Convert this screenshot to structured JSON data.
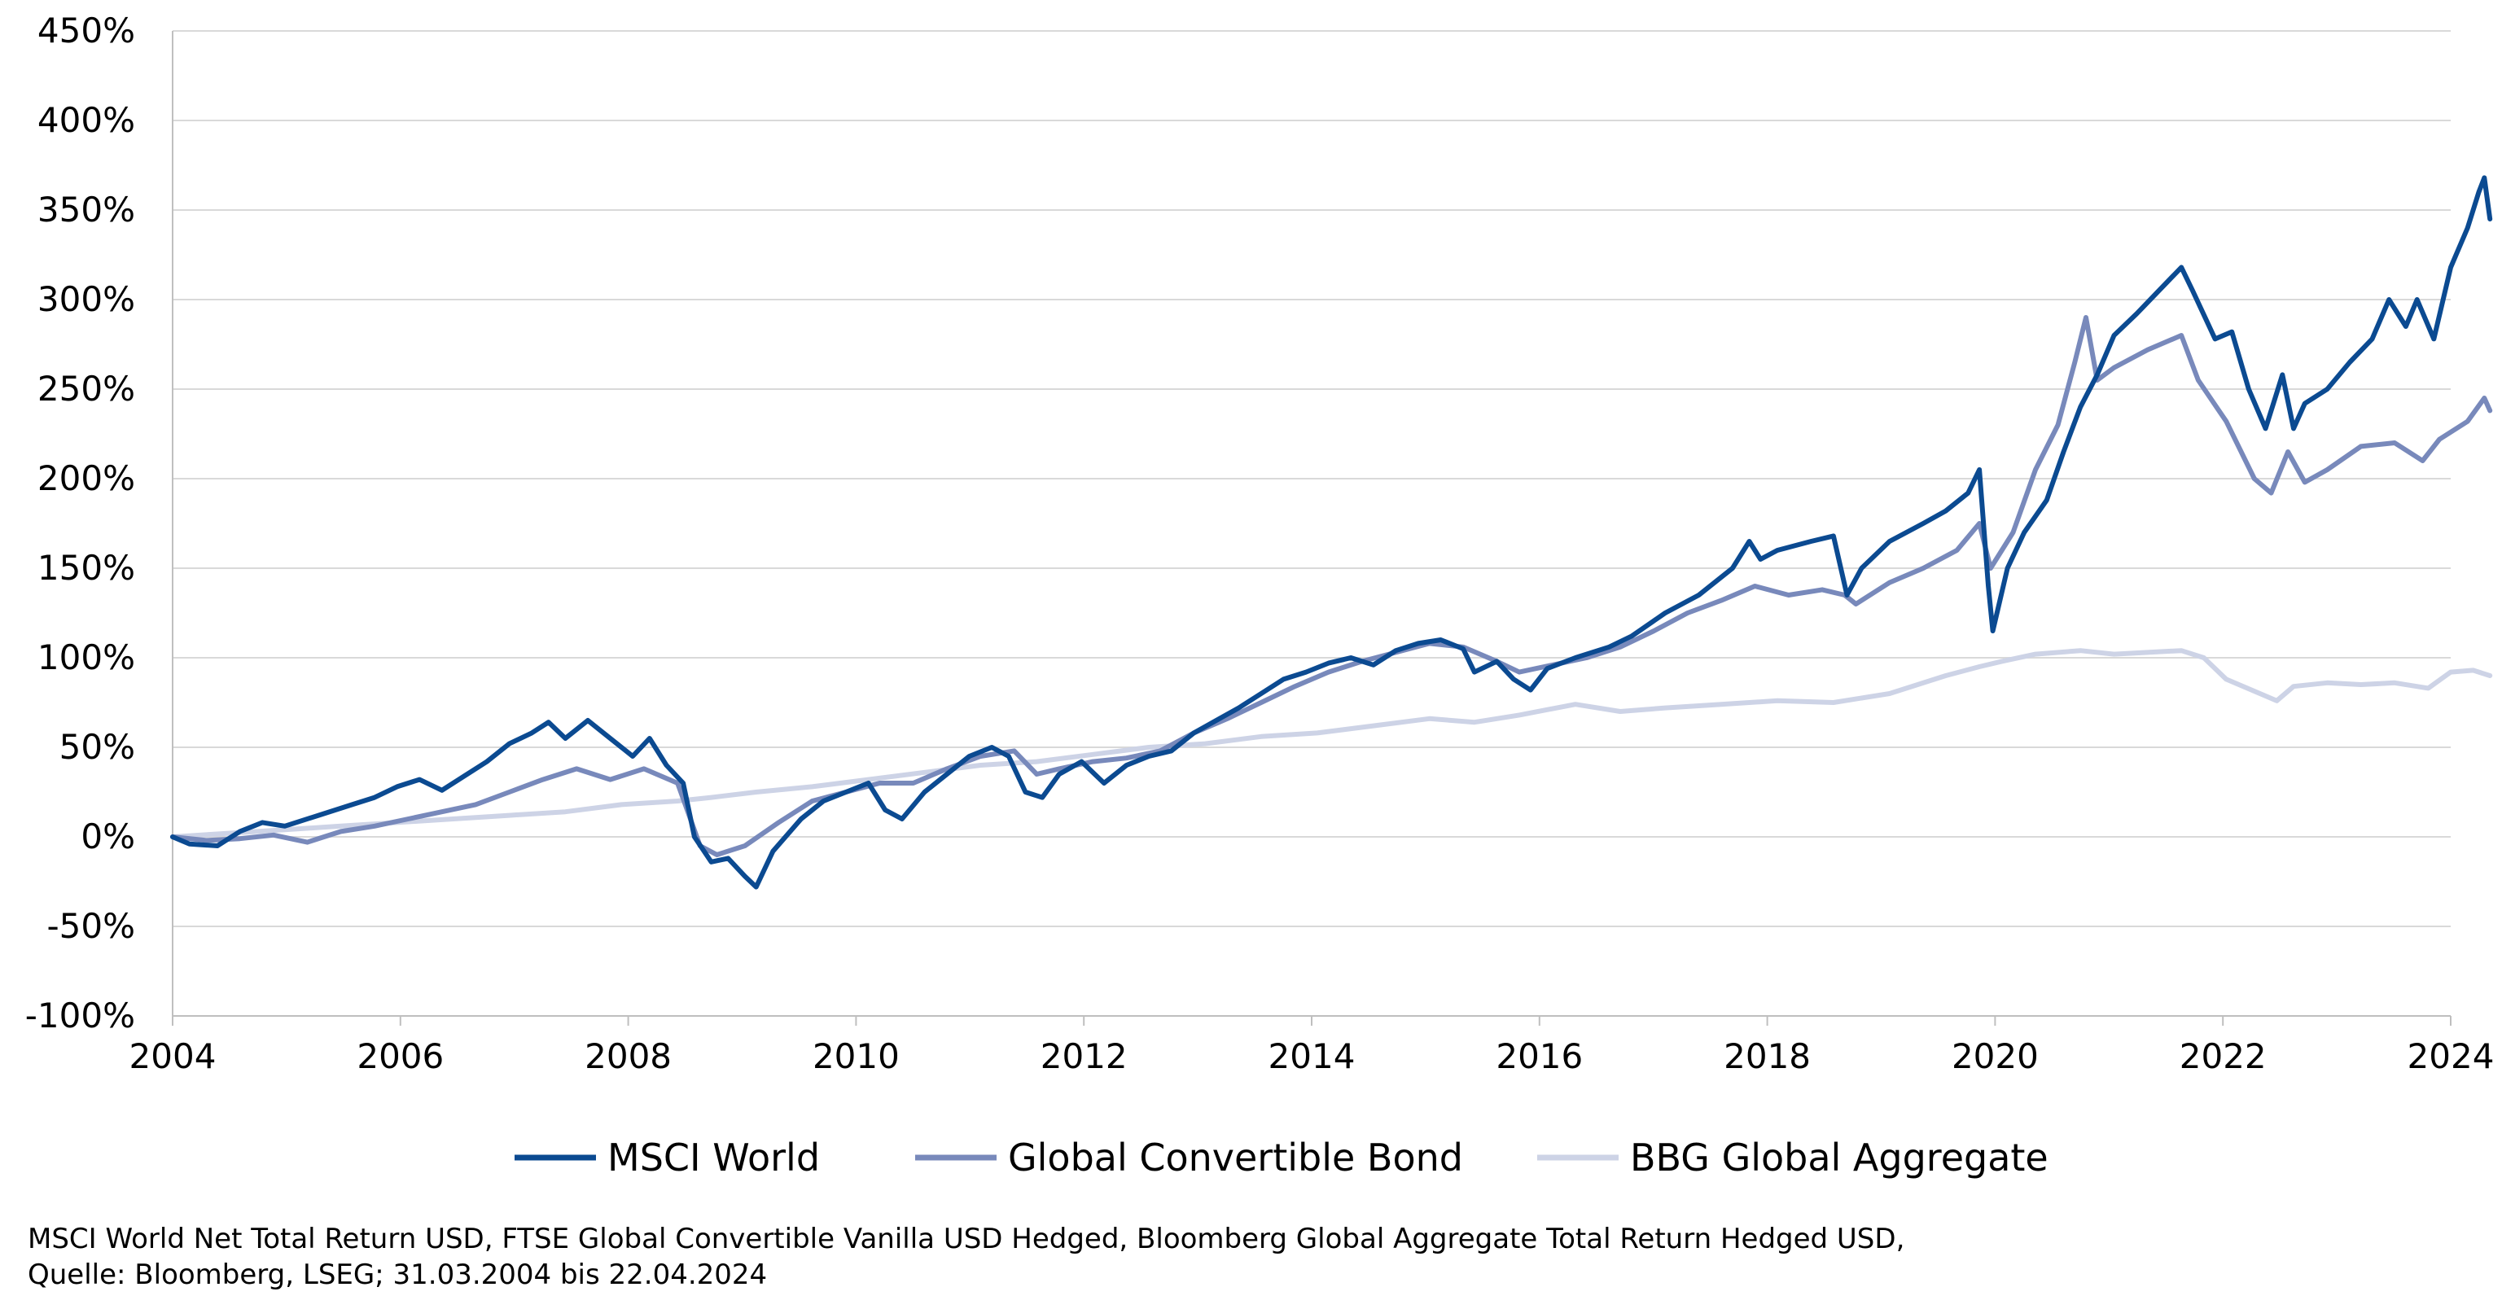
{
  "chart_data": {
    "type": "line",
    "x_range": [
      2004,
      2024.3
    ],
    "ylim": [
      -100,
      450
    ],
    "y_ticks": [
      "450%",
      "400%",
      "350%",
      "300%",
      "250%",
      "200%",
      "150%",
      "100%",
      "50%",
      "0%",
      "-50%",
      "-100%"
    ],
    "y_tick_values": [
      450,
      400,
      350,
      300,
      250,
      200,
      150,
      100,
      50,
      0,
      -50,
      -100
    ],
    "x_ticks": [
      "2004",
      "2006",
      "2008",
      "2010",
      "2012",
      "2014",
      "2016",
      "2018",
      "2020",
      "2022",
      "2024"
    ],
    "x_tick_values": [
      2004,
      2006,
      2008,
      2010,
      2012,
      2014,
      2016,
      2018,
      2020,
      2022,
      2024
    ],
    "grid": "horizontal",
    "legend_position": "bottom",
    "series": [
      {
        "name": "MSCI World",
        "color": "#0B4A91",
        "points": [
          [
            2004.0,
            0
          ],
          [
            2004.15,
            -4
          ],
          [
            2004.4,
            -5
          ],
          [
            2004.6,
            3
          ],
          [
            2004.8,
            8
          ],
          [
            2005.0,
            6
          ],
          [
            2005.3,
            12
          ],
          [
            2005.6,
            18
          ],
          [
            2005.8,
            22
          ],
          [
            2006.0,
            28
          ],
          [
            2006.2,
            32
          ],
          [
            2006.4,
            26
          ],
          [
            2006.6,
            34
          ],
          [
            2006.8,
            42
          ],
          [
            2007.0,
            52
          ],
          [
            2007.2,
            58
          ],
          [
            2007.35,
            64
          ],
          [
            2007.5,
            55
          ],
          [
            2007.7,
            65
          ],
          [
            2007.9,
            55
          ],
          [
            2008.1,
            45
          ],
          [
            2008.25,
            55
          ],
          [
            2008.4,
            40
          ],
          [
            2008.55,
            30
          ],
          [
            2008.65,
            0
          ],
          [
            2008.8,
            -14
          ],
          [
            2008.95,
            -12
          ],
          [
            2009.1,
            -22
          ],
          [
            2009.2,
            -28
          ],
          [
            2009.35,
            -8
          ],
          [
            2009.6,
            10
          ],
          [
            2009.8,
            20
          ],
          [
            2010.0,
            25
          ],
          [
            2010.2,
            30
          ],
          [
            2010.35,
            15
          ],
          [
            2010.5,
            10
          ],
          [
            2010.7,
            25
          ],
          [
            2010.9,
            35
          ],
          [
            2011.1,
            45
          ],
          [
            2011.3,
            50
          ],
          [
            2011.45,
            45
          ],
          [
            2011.6,
            25
          ],
          [
            2011.75,
            22
          ],
          [
            2011.9,
            35
          ],
          [
            2012.1,
            42
          ],
          [
            2012.3,
            30
          ],
          [
            2012.5,
            40
          ],
          [
            2012.7,
            45
          ],
          [
            2012.9,
            48
          ],
          [
            2013.1,
            58
          ],
          [
            2013.3,
            65
          ],
          [
            2013.5,
            72
          ],
          [
            2013.7,
            80
          ],
          [
            2013.9,
            88
          ],
          [
            2014.1,
            92
          ],
          [
            2014.3,
            97
          ],
          [
            2014.5,
            100
          ],
          [
            2014.7,
            96
          ],
          [
            2014.9,
            104
          ],
          [
            2015.1,
            108
          ],
          [
            2015.3,
            110
          ],
          [
            2015.5,
            105
          ],
          [
            2015.6,
            92
          ],
          [
            2015.8,
            98
          ],
          [
            2015.95,
            88
          ],
          [
            2016.1,
            82
          ],
          [
            2016.25,
            94
          ],
          [
            2016.5,
            100
          ],
          [
            2016.8,
            106
          ],
          [
            2017.0,
            112
          ],
          [
            2017.3,
            125
          ],
          [
            2017.6,
            135
          ],
          [
            2017.9,
            150
          ],
          [
            2018.05,
            165
          ],
          [
            2018.15,
            155
          ],
          [
            2018.3,
            160
          ],
          [
            2018.6,
            165
          ],
          [
            2018.8,
            168
          ],
          [
            2018.92,
            135
          ],
          [
            2019.05,
            150
          ],
          [
            2019.3,
            165
          ],
          [
            2019.6,
            175
          ],
          [
            2019.8,
            182
          ],
          [
            2020.0,
            192
          ],
          [
            2020.1,
            205
          ],
          [
            2020.18,
            140
          ],
          [
            2020.22,
            115
          ],
          [
            2020.35,
            150
          ],
          [
            2020.5,
            170
          ],
          [
            2020.7,
            188
          ],
          [
            2020.85,
            215
          ],
          [
            2021.0,
            240
          ],
          [
            2021.15,
            258
          ],
          [
            2021.3,
            280
          ],
          [
            2021.5,
            292
          ],
          [
            2021.7,
            305
          ],
          [
            2021.9,
            318
          ],
          [
            2022.0,
            305
          ],
          [
            2022.2,
            278
          ],
          [
            2022.35,
            282
          ],
          [
            2022.5,
            250
          ],
          [
            2022.65,
            228
          ],
          [
            2022.8,
            258
          ],
          [
            2022.9,
            228
          ],
          [
            2023.0,
            242
          ],
          [
            2023.2,
            250
          ],
          [
            2023.4,
            265
          ],
          [
            2023.6,
            278
          ],
          [
            2023.75,
            300
          ],
          [
            2023.9,
            285
          ],
          [
            2024.0,
            300
          ],
          [
            2024.15,
            278
          ],
          [
            2024.3,
            318
          ],
          [
            2024.45,
            340
          ],
          [
            2024.55,
            360
          ],
          [
            2024.6,
            368
          ],
          [
            2024.65,
            345
          ]
        ]
      },
      {
        "name": "Global Convertible Bond",
        "color": "#7889BB",
        "points": [
          [
            2004.0,
            0
          ],
          [
            2004.3,
            -2
          ],
          [
            2004.6,
            -1
          ],
          [
            2004.9,
            1
          ],
          [
            2005.2,
            -3
          ],
          [
            2005.5,
            3
          ],
          [
            2005.8,
            6
          ],
          [
            2006.1,
            10
          ],
          [
            2006.4,
            14
          ],
          [
            2006.7,
            18
          ],
          [
            2007.0,
            25
          ],
          [
            2007.3,
            32
          ],
          [
            2007.6,
            38
          ],
          [
            2007.9,
            32
          ],
          [
            2008.2,
            38
          ],
          [
            2008.5,
            30
          ],
          [
            2008.7,
            -5
          ],
          [
            2008.85,
            -10
          ],
          [
            2009.1,
            -5
          ],
          [
            2009.4,
            8
          ],
          [
            2009.7,
            20
          ],
          [
            2010.0,
            25
          ],
          [
            2010.3,
            30
          ],
          [
            2010.6,
            30
          ],
          [
            2010.9,
            38
          ],
          [
            2011.2,
            45
          ],
          [
            2011.5,
            48
          ],
          [
            2011.7,
            35
          ],
          [
            2011.9,
            38
          ],
          [
            2012.2,
            42
          ],
          [
            2012.5,
            44
          ],
          [
            2012.8,
            48
          ],
          [
            2013.1,
            58
          ],
          [
            2013.4,
            66
          ],
          [
            2013.7,
            75
          ],
          [
            2014.0,
            84
          ],
          [
            2014.3,
            92
          ],
          [
            2014.6,
            98
          ],
          [
            2014.9,
            103
          ],
          [
            2015.2,
            108
          ],
          [
            2015.5,
            106
          ],
          [
            2015.8,
            98
          ],
          [
            2016.0,
            92
          ],
          [
            2016.3,
            96
          ],
          [
            2016.6,
            100
          ],
          [
            2016.9,
            106
          ],
          [
            2017.2,
            115
          ],
          [
            2017.5,
            125
          ],
          [
            2017.8,
            132
          ],
          [
            2018.1,
            140
          ],
          [
            2018.4,
            135
          ],
          [
            2018.7,
            138
          ],
          [
            2018.9,
            135
          ],
          [
            2019.0,
            130
          ],
          [
            2019.3,
            142
          ],
          [
            2019.6,
            150
          ],
          [
            2019.9,
            160
          ],
          [
            2020.1,
            175
          ],
          [
            2020.2,
            150
          ],
          [
            2020.4,
            170
          ],
          [
            2020.6,
            205
          ],
          [
            2020.8,
            230
          ],
          [
            2020.95,
            265
          ],
          [
            2021.05,
            290
          ],
          [
            2021.15,
            255
          ],
          [
            2021.3,
            262
          ],
          [
            2021.6,
            272
          ],
          [
            2021.9,
            280
          ],
          [
            2022.05,
            255
          ],
          [
            2022.3,
            232
          ],
          [
            2022.55,
            200
          ],
          [
            2022.7,
            192
          ],
          [
            2022.85,
            215
          ],
          [
            2023.0,
            198
          ],
          [
            2023.2,
            205
          ],
          [
            2023.5,
            218
          ],
          [
            2023.8,
            220
          ],
          [
            2024.05,
            210
          ],
          [
            2024.2,
            222
          ],
          [
            2024.45,
            232
          ],
          [
            2024.6,
            245
          ],
          [
            2024.65,
            238
          ]
        ]
      },
      {
        "name": "BBG Global Aggregate",
        "color": "#CDD3E6",
        "points": [
          [
            2004.0,
            0
          ],
          [
            2004.5,
            2
          ],
          [
            2005.0,
            4
          ],
          [
            2005.5,
            6
          ],
          [
            2006.0,
            8
          ],
          [
            2006.5,
            10
          ],
          [
            2007.0,
            12
          ],
          [
            2007.5,
            14
          ],
          [
            2008.0,
            18
          ],
          [
            2008.5,
            20
          ],
          [
            2008.8,
            22
          ],
          [
            2009.2,
            25
          ],
          [
            2009.7,
            28
          ],
          [
            2010.2,
            32
          ],
          [
            2010.7,
            36
          ],
          [
            2011.2,
            40
          ],
          [
            2011.7,
            42
          ],
          [
            2012.2,
            46
          ],
          [
            2012.7,
            50
          ],
          [
            2013.2,
            52
          ],
          [
            2013.7,
            56
          ],
          [
            2014.2,
            58
          ],
          [
            2014.7,
            62
          ],
          [
            2015.2,
            66
          ],
          [
            2015.6,
            64
          ],
          [
            2016.0,
            68
          ],
          [
            2016.5,
            74
          ],
          [
            2016.9,
            70
          ],
          [
            2017.3,
            72
          ],
          [
            2017.8,
            74
          ],
          [
            2018.3,
            76
          ],
          [
            2018.8,
            75
          ],
          [
            2019.3,
            80
          ],
          [
            2019.8,
            90
          ],
          [
            2020.1,
            95
          ],
          [
            2020.3,
            98
          ],
          [
            2020.6,
            102
          ],
          [
            2021.0,
            104
          ],
          [
            2021.3,
            102
          ],
          [
            2021.6,
            103
          ],
          [
            2021.9,
            104
          ],
          [
            2022.1,
            100
          ],
          [
            2022.3,
            88
          ],
          [
            2022.6,
            80
          ],
          [
            2022.75,
            76
          ],
          [
            2022.9,
            84
          ],
          [
            2023.2,
            86
          ],
          [
            2023.5,
            85
          ],
          [
            2023.8,
            86
          ],
          [
            2024.1,
            83
          ],
          [
            2024.3,
            92
          ],
          [
            2024.5,
            93
          ],
          [
            2024.65,
            90
          ]
        ]
      }
    ]
  },
  "source_note": {
    "line1": "MSCI World Net Total Return USD, FTSE Global Convertible Vanilla USD Hedged, Bloomberg Global Aggregate Total Return Hedged USD,",
    "line2": "Quelle: Bloomberg, LSEG; 31.03.2004 bis 22.04.2024"
  }
}
